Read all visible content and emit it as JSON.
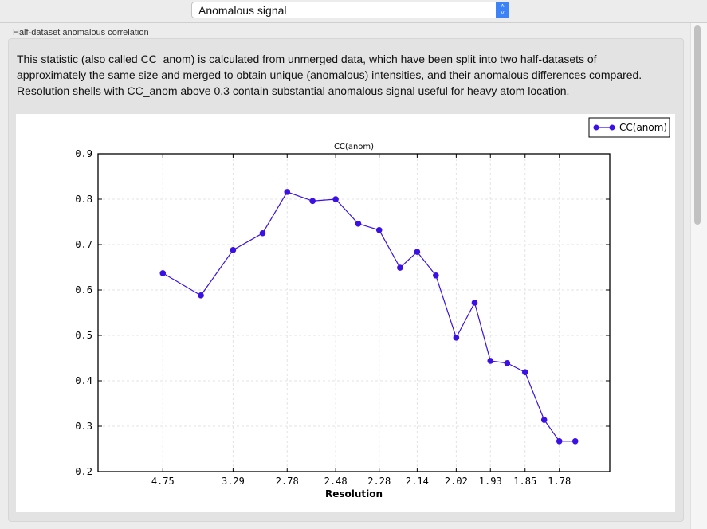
{
  "selector": {
    "value": "Anomalous signal",
    "icon": "up-down-chevron-icon"
  },
  "group": {
    "label": "Half-dataset anomalous correlation",
    "description": "This statistic (also called CC_anom) is calculated from unmerged data, which have been split into two half-datasets of approximately the same size and merged to obtain unique (anomalous) intensities, and their anomalous differences compared.  Resolution shells with CC_anom above 0.3 contain substantial anomalous signal useful for heavy atom location."
  },
  "chart_data": {
    "type": "line",
    "title": "CC(anom)",
    "xlabel": "Resolution",
    "ylabel": "",
    "x_scale": "1/d^2",
    "xlim": [
      null,
      1.69
    ],
    "ylim": [
      0.2,
      0.9
    ],
    "yticks": [
      "0.2",
      "0.3",
      "0.4",
      "0.5",
      "0.6",
      "0.7",
      "0.8",
      "0.9"
    ],
    "xticks": [
      "4.75",
      "3.29",
      "2.78",
      "2.48",
      "2.28",
      "2.14",
      "2.02",
      "1.93",
      "1.85",
      "1.78"
    ],
    "grid": true,
    "legend": "top-right",
    "color": "#3a10e5",
    "series": [
      {
        "name": "CC(anom)",
        "x": [
          4.75,
          3.77,
          3.29,
          2.98,
          2.78,
          2.61,
          2.48,
          2.37,
          2.28,
          2.2,
          2.14,
          2.08,
          2.02,
          1.97,
          1.93,
          1.89,
          1.85,
          1.81,
          1.78,
          1.75
        ],
        "y": [
          0.637,
          0.588,
          0.688,
          0.725,
          0.816,
          0.796,
          0.8,
          0.746,
          0.732,
          0.649,
          0.684,
          0.632,
          0.495,
          0.572,
          0.444,
          0.439,
          0.419,
          0.314,
          0.267,
          0.267
        ]
      }
    ]
  }
}
